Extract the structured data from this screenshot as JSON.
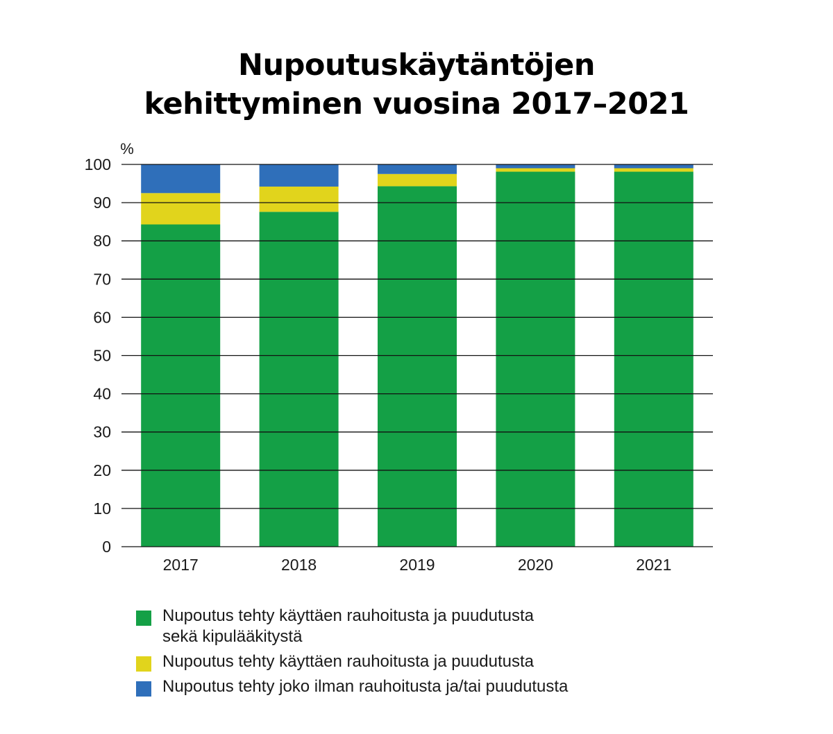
{
  "title_line1": "Nupoutuskäytäntöjen",
  "title_line2": "kehittyminen vuosina 2017–2021",
  "chart_data": {
    "type": "bar",
    "stacked": true,
    "ylabel": "%",
    "ylim": [
      0,
      100
    ],
    "yticks": [
      0,
      10,
      20,
      30,
      40,
      50,
      60,
      70,
      80,
      90,
      100
    ],
    "grid": true,
    "categories": [
      "2017",
      "2018",
      "2019",
      "2020",
      "2021"
    ],
    "series": [
      {
        "name": "Nupoutus tehty käyttäen rauhoitusta ja puudutusta\nsekä kipulääkitystä",
        "color": "#14a046",
        "values": [
          84.3,
          87.6,
          94.3,
          98.1,
          98.1
        ]
      },
      {
        "name": "Nupoutus tehty käyttäen rauhoitusta ja puudutusta",
        "color": "#e1d41c",
        "values": [
          8.2,
          6.6,
          3.2,
          0.9,
          0.9
        ]
      },
      {
        "name": "Nupoutus tehty joko ilman rauhoitusta ja/tai puudutusta",
        "color": "#2f6fba",
        "values": [
          7.5,
          5.8,
          2.5,
          1.0,
          1.0
        ]
      }
    ],
    "legend_position": "bottom"
  }
}
